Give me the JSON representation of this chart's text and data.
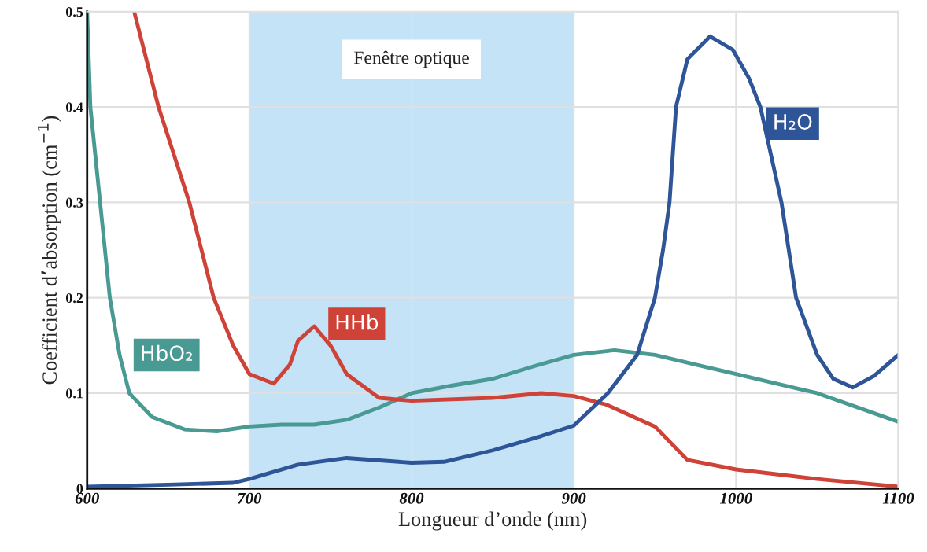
{
  "chart_data": {
    "type": "line",
    "xlabel": "Longueur d’onde (nm)",
    "ylabel": "Coefficient d’absorption (cm$^{−1}$)",
    "xlim": [
      600,
      1100
    ],
    "ylim": [
      0,
      0.5
    ],
    "xticks": [
      600,
      700,
      800,
      900,
      1000,
      1100
    ],
    "yticks": [
      0,
      0.1,
      0.2,
      0.3,
      0.4,
      0.5
    ],
    "grid": true,
    "legend": false,
    "marker": "none",
    "line_style": "solid",
    "bands": [
      {
        "axis": "x",
        "from": 700,
        "to": 900,
        "label": "Fenêtre optique",
        "color": "#c5e3f7"
      }
    ],
    "series": [
      {
        "name": "HbO₂",
        "color": "#4a9a94",
        "x": [
          600,
          602,
          608,
          614,
          620,
          626,
          640,
          660,
          680,
          700,
          720,
          740,
          760,
          780,
          800,
          825,
          850,
          875,
          900,
          925,
          950,
          975,
          1000,
          1025,
          1050,
          1075,
          1100
        ],
        "values": [
          0.5,
          0.4,
          0.3,
          0.2,
          0.14,
          0.1,
          0.075,
          0.062,
          0.06,
          0.065,
          0.067,
          0.067,
          0.072,
          0.085,
          0.1,
          0.108,
          0.115,
          0.128,
          0.14,
          0.145,
          0.14,
          0.13,
          0.12,
          0.11,
          0.1,
          0.085,
          0.07
        ]
      },
      {
        "name": "HHb",
        "color": "#cf4238",
        "x": [
          629,
          644,
          663,
          678,
          690,
          700,
          715,
          725,
          730,
          740,
          750,
          760,
          780,
          800,
          850,
          880,
          900,
          920,
          950,
          970,
          1000,
          1050,
          1100
        ],
        "values": [
          0.5,
          0.4,
          0.3,
          0.2,
          0.15,
          0.12,
          0.11,
          0.13,
          0.155,
          0.17,
          0.15,
          0.12,
          0.095,
          0.092,
          0.095,
          0.1,
          0.097,
          0.088,
          0.065,
          0.03,
          0.02,
          0.01,
          0.002
        ]
      },
      {
        "name": "H₂O",
        "color": "#2d5597",
        "x": [
          600,
          650,
          690,
          700,
          730,
          760,
          800,
          820,
          850,
          880,
          900,
          921,
          939,
          950,
          955,
          959,
          963,
          970,
          984,
          998,
          1008,
          1015,
          1028,
          1037,
          1050,
          1060,
          1072,
          1085,
          1100
        ],
        "values": [
          0.002,
          0.004,
          0.006,
          0.01,
          0.025,
          0.032,
          0.027,
          0.028,
          0.04,
          0.055,
          0.066,
          0.1,
          0.14,
          0.2,
          0.25,
          0.3,
          0.4,
          0.45,
          0.474,
          0.46,
          0.43,
          0.4,
          0.3,
          0.2,
          0.14,
          0.115,
          0.106,
          0.118,
          0.14
        ]
      }
    ]
  }
}
